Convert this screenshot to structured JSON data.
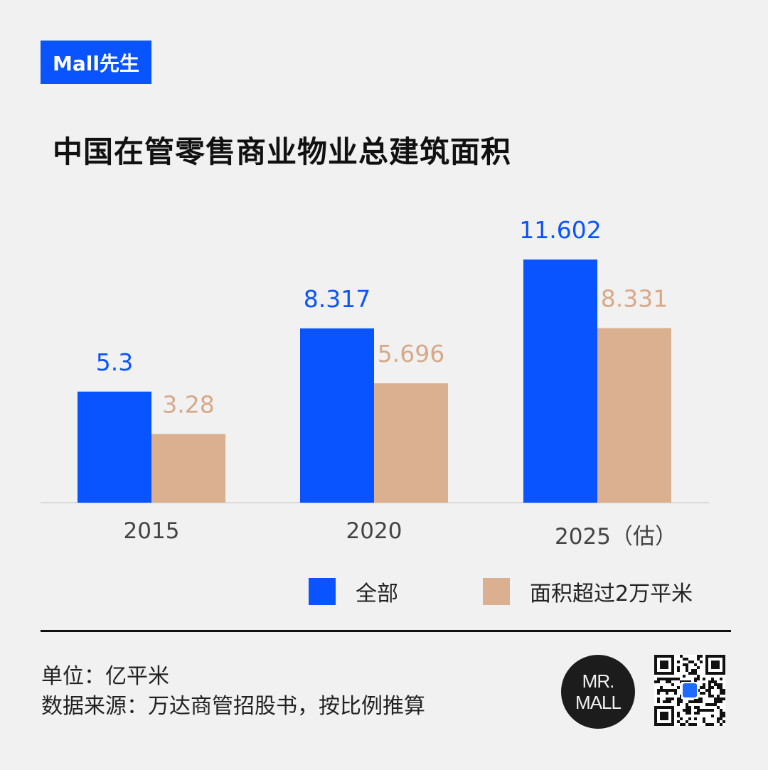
{
  "brand": {
    "tag": "Mall先生",
    "logo_line1": "MR.",
    "logo_line2": "MALL"
  },
  "chart_data": {
    "type": "bar",
    "title": "中国在管零售商业物业总建筑面积",
    "categories": [
      "2015",
      "2020",
      "2025（估）"
    ],
    "series": [
      {
        "name": "全部",
        "values": [
          5.3,
          8.317,
          11.602
        ],
        "labels": [
          "5.3",
          "8.317",
          "11.602"
        ],
        "color": "#0a54ff"
      },
      {
        "name": "面积超过2万平米",
        "values": [
          3.28,
          5.696,
          8.331
        ],
        "labels": [
          "3.28",
          "5.696",
          "8.331"
        ],
        "color": "#dbb091"
      }
    ],
    "ylim": [
      0,
      11.602
    ],
    "grid": false,
    "legend": "bottom-right"
  },
  "footer": {
    "unit": "单位：亿平米",
    "source": "数据来源：万达商管招股书，按比例推算"
  },
  "colors": {
    "accent": "#0a54ff",
    "secondary": "#dbb091",
    "background": "#f1f1f1"
  }
}
